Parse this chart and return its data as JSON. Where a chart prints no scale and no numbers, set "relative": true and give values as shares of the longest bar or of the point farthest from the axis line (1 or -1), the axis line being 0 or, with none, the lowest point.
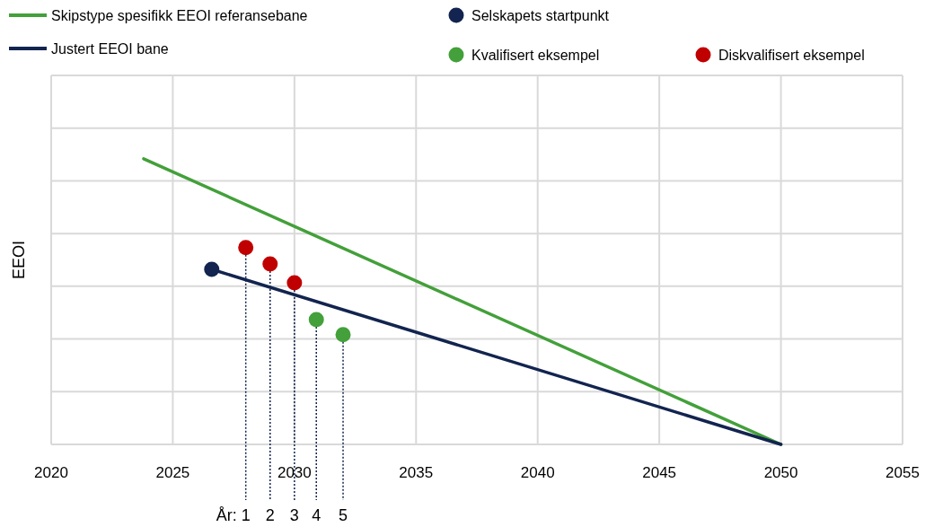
{
  "chart_data": {
    "type": "line",
    "relative": true,
    "ylabel": "EEOI",
    "xlim": [
      2020,
      2055
    ],
    "xticks": [
      2020,
      2025,
      2030,
      2035,
      2040,
      2045,
      2050,
      2055
    ],
    "grid": true,
    "legend": "top",
    "series": [
      {
        "name": "Skipstype spesifikk EEOI referansebane",
        "color": "#43a03a",
        "x": [
          2023.8,
          2050
        ],
        "values": [
          1,
          0
        ]
      },
      {
        "name": "Justert EEOI bane",
        "color": "#12244f",
        "x": [
          2026.6,
          2050
        ],
        "values": [
          0.613,
          0
        ]
      },
      {
        "name": "Selskapets startpunkt",
        "color": "#12244f",
        "type": "scatter",
        "marker": "circle",
        "x": [
          2026.6
        ],
        "values": [
          0.613
        ]
      },
      {
        "name": "Kvalifisert eksempel",
        "color": "#43a03a",
        "type": "scatter",
        "marker": "circle",
        "x": [
          2030.9,
          2032
        ],
        "values": [
          0.437,
          0.384
        ]
      },
      {
        "name": "Diskvalifisert eksempel",
        "color": "#c00000",
        "type": "scatter",
        "marker": "circle",
        "x": [
          2028,
          2029,
          2030
        ],
        "values": [
          0.689,
          0.632,
          0.566
        ]
      }
    ],
    "annotations": [
      "År:",
      {
        "text": "1",
        "x": 2028,
        "y": 0.689
      },
      {
        "text": "2",
        "x": 2029,
        "y": 0.632
      },
      {
        "text": "3",
        "x": 2030,
        "y": 0.566
      },
      {
        "text": "4",
        "x": 2030.9,
        "y": 0.437
      },
      {
        "text": "5",
        "x": 2032,
        "y": 0.384
      }
    ]
  }
}
